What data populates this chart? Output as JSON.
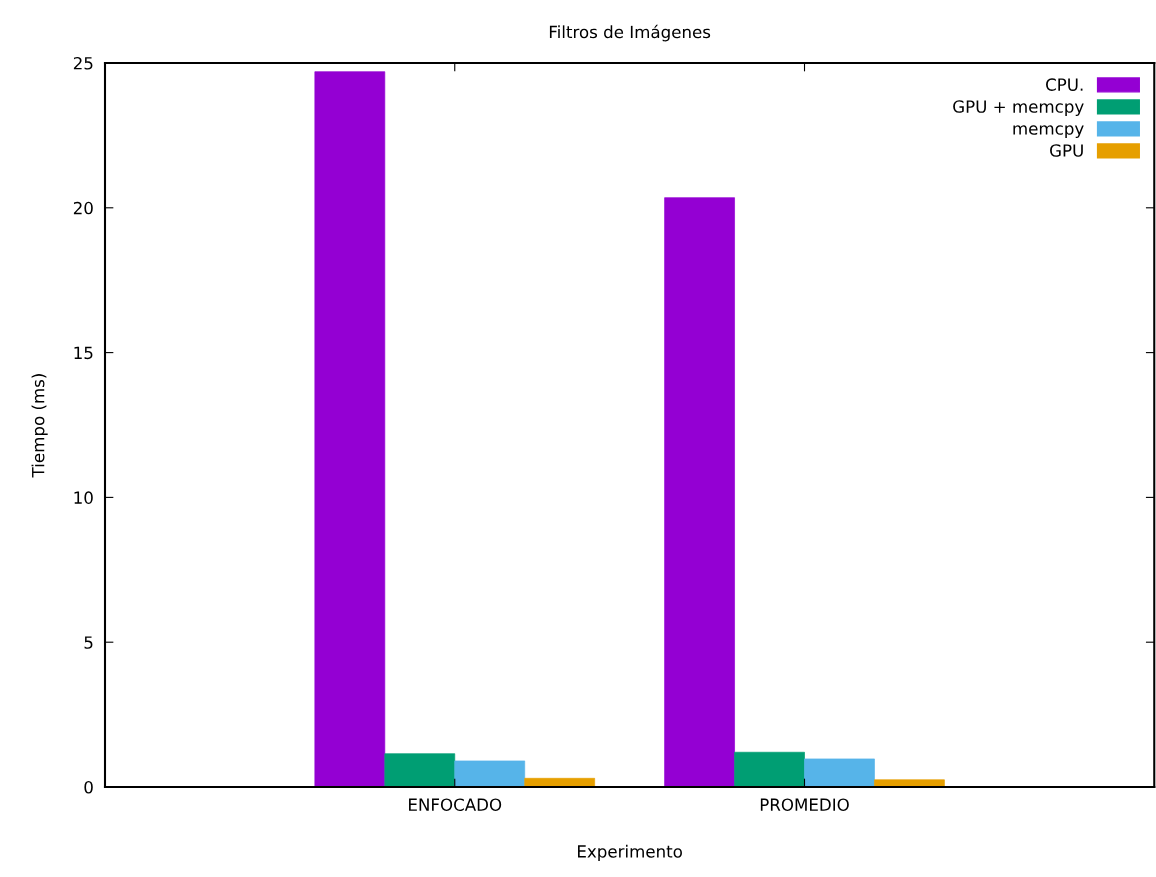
{
  "chart_data": {
    "type": "bar",
    "title": "Filtros de Imágenes",
    "xlabel": "Experimento",
    "ylabel": "Tiempo (ms)",
    "categories": [
      "ENFOCADO",
      "PROMEDIO"
    ],
    "series": [
      {
        "name": "CPU.",
        "color": "#9400d3",
        "values": [
          24.7,
          20.35
        ]
      },
      {
        "name": "GPU + memcpy",
        "color": "#009e73",
        "values": [
          1.15,
          1.2
        ]
      },
      {
        "name": "memcpy",
        "color": "#56b4e9",
        "values": [
          0.9,
          0.97
        ]
      },
      {
        "name": "GPU",
        "color": "#e69f00",
        "values": [
          0.3,
          0.25
        ]
      }
    ],
    "ylim": [
      0,
      25
    ],
    "yticks": [
      0,
      5,
      10,
      15,
      20,
      25
    ],
    "grid": false,
    "legend": "top right"
  }
}
